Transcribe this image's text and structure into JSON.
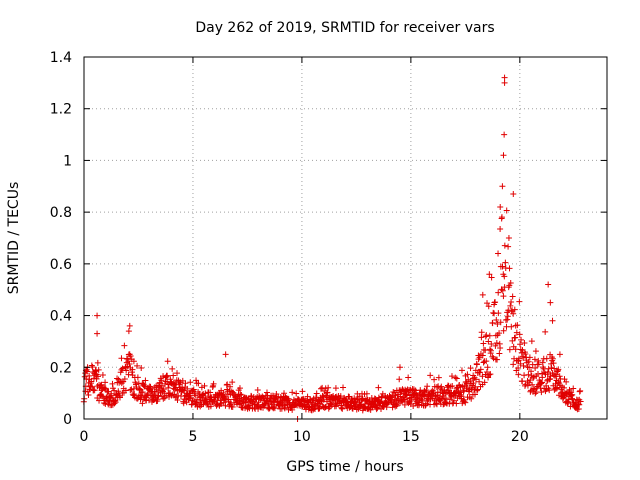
{
  "chart_data": {
    "type": "scatter",
    "title": "Day 262 of 2019, SRMTID for receiver vars",
    "xlabel": "GPS time / hours",
    "ylabel": "SRMTID / TECUs",
    "xlim": [
      0,
      24
    ],
    "ylim": [
      0,
      1.4
    ],
    "x_ticks": [
      0,
      5,
      10,
      15,
      20
    ],
    "x_tick_labels": [
      "0",
      "5",
      "10",
      "15",
      "20"
    ],
    "y_ticks": [
      0,
      0.2,
      0.4,
      0.6,
      0.8,
      1.0,
      1.2,
      1.4
    ],
    "y_tick_labels": [
      "0",
      "0.2",
      "0.4",
      "0.6",
      "0.8",
      "1",
      "1.2",
      "1.4"
    ],
    "grid": true,
    "marker": "+",
    "series": [
      {
        "name": "SRMTID",
        "color": "#e00000",
        "envelope": [
          [
            0.0,
            0.14
          ],
          [
            0.3,
            0.17
          ],
          [
            0.6,
            0.14
          ],
          [
            0.9,
            0.1
          ],
          [
            1.2,
            0.08
          ],
          [
            1.5,
            0.12
          ],
          [
            1.8,
            0.16
          ],
          [
            2.1,
            0.2
          ],
          [
            2.4,
            0.13
          ],
          [
            2.8,
            0.1
          ],
          [
            3.2,
            0.1
          ],
          [
            3.6,
            0.12
          ],
          [
            4.0,
            0.15
          ],
          [
            4.4,
            0.11
          ],
          [
            5.0,
            0.09
          ],
          [
            5.5,
            0.08
          ],
          [
            6.0,
            0.08
          ],
          [
            6.5,
            0.09
          ],
          [
            7.0,
            0.08
          ],
          [
            7.5,
            0.07
          ],
          [
            8.0,
            0.07
          ],
          [
            8.5,
            0.07
          ],
          [
            9.0,
            0.07
          ],
          [
            9.5,
            0.06
          ],
          [
            10.0,
            0.06
          ],
          [
            10.5,
            0.06
          ],
          [
            11.0,
            0.07
          ],
          [
            11.5,
            0.07
          ],
          [
            12.0,
            0.07
          ],
          [
            12.5,
            0.06
          ],
          [
            13.0,
            0.06
          ],
          [
            13.5,
            0.07
          ],
          [
            14.0,
            0.07
          ],
          [
            14.5,
            0.1
          ],
          [
            15.0,
            0.09
          ],
          [
            15.5,
            0.09
          ],
          [
            16.0,
            0.1
          ],
          [
            16.5,
            0.1
          ],
          [
            17.0,
            0.1
          ],
          [
            17.5,
            0.11
          ],
          [
            17.8,
            0.13
          ],
          [
            18.2,
            0.2
          ],
          [
            18.6,
            0.3
          ],
          [
            19.0,
            0.38
          ],
          [
            19.3,
            0.55
          ],
          [
            19.6,
            0.42
          ],
          [
            19.9,
            0.28
          ],
          [
            20.2,
            0.2
          ],
          [
            20.6,
            0.18
          ],
          [
            21.0,
            0.18
          ],
          [
            21.4,
            0.2
          ],
          [
            21.8,
            0.15
          ],
          [
            22.2,
            0.1
          ],
          [
            22.5,
            0.07
          ],
          [
            22.8,
            0.06
          ]
        ],
        "outliers": [
          [
            0.6,
            0.4
          ],
          [
            0.6,
            0.33
          ],
          [
            2.1,
            0.36
          ],
          [
            6.5,
            0.25
          ],
          [
            9.8,
            0.0
          ],
          [
            14.5,
            0.2
          ],
          [
            18.3,
            0.48
          ],
          [
            18.6,
            0.56
          ],
          [
            19.0,
            0.64
          ],
          [
            19.1,
            0.82
          ],
          [
            19.2,
            0.9
          ],
          [
            19.25,
            1.02
          ],
          [
            19.28,
            1.1
          ],
          [
            19.3,
            1.3
          ],
          [
            19.3,
            1.32
          ],
          [
            19.5,
            0.7
          ],
          [
            19.7,
            0.87
          ],
          [
            21.3,
            0.52
          ],
          [
            21.4,
            0.45
          ],
          [
            21.5,
            0.38
          ]
        ]
      }
    ]
  }
}
